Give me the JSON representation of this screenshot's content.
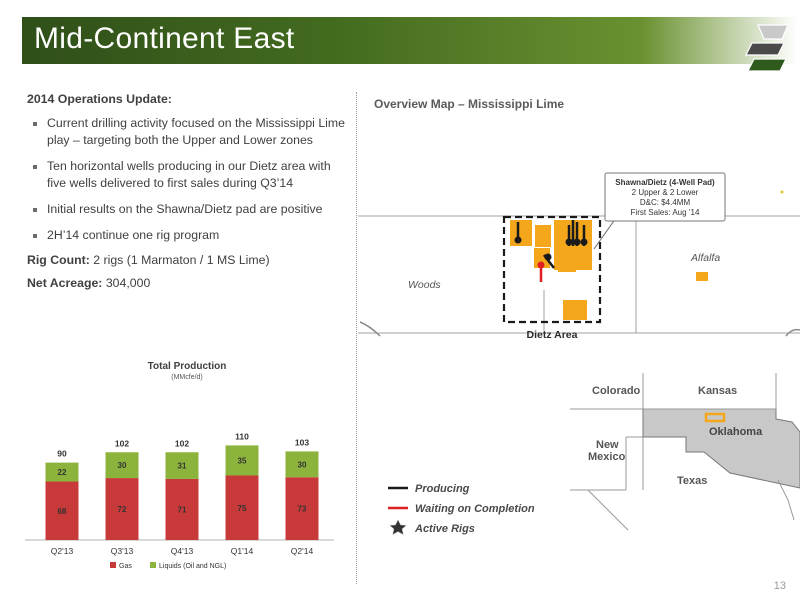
{
  "header": {
    "title": "Mid-Continent East"
  },
  "left": {
    "subtitle": "2014 Operations Update:",
    "bullets": [
      "Current drilling activity focused on the Mississippi Lime play – targeting both the Upper and Lower zones",
      "Ten horizontal wells producing in our Dietz area with five wells delivered to first sales during Q3’14",
      "Initial results on the Shawna/Dietz pad are positive",
      "2H’14 continue one rig program"
    ],
    "rig_count_label": "Rig Count:",
    "rig_count_value": "2 rigs (1 Marmaton / 1 MS Lime)",
    "acreage_label": "Net Acreage:",
    "acreage_value": "304,000"
  },
  "chart_data": {
    "type": "bar",
    "stacked": true,
    "title": "Total Production",
    "subtitle": "(MMcfe/d)",
    "categories": [
      "Q2'13",
      "Q3'13",
      "Q4'13",
      "Q1'14",
      "Q2'14"
    ],
    "series": [
      {
        "name": "Gas",
        "values": [
          68,
          72,
          71,
          75,
          73
        ],
        "color": "#c8393a"
      },
      {
        "name": "Liquids (Oil and NGL)",
        "values": [
          22,
          30,
          31,
          35,
          30
        ],
        "color": "#8cb43c"
      }
    ],
    "totals": [
      90,
      102,
      102,
      110,
      103
    ],
    "ylim": [
      0,
      120
    ],
    "legend": "bottom",
    "grid": false
  },
  "map": {
    "title": "Overview Map – Mississippi Lime",
    "callout": {
      "line1": "Shawna/Dietz (4-Well Pad)",
      "line2": "2 Upper & 2 Lower",
      "line3": "D&C: $4.4MM",
      "line4": "First Sales: Aug ’14"
    },
    "county_alfalfa": "Alfalfa",
    "county_woods": "Woods",
    "area_label": "Dietz Area",
    "states": {
      "colorado": "Colorado",
      "kansas": "Kansas",
      "oklahoma": "Oklahoma",
      "new_mexico_1": "New",
      "new_mexico_2": "Mexico",
      "texas": "Texas"
    },
    "legend": {
      "producing": "Producing",
      "waiting": "Waiting on Completion",
      "rigs": "Active Rigs"
    },
    "colors": {
      "acreage": "#f4a71b",
      "producing": "#1a1a1a",
      "waiting": "#e02020",
      "oklahoma": "#c8c8c8"
    }
  },
  "footer": {
    "page_number": "13"
  }
}
